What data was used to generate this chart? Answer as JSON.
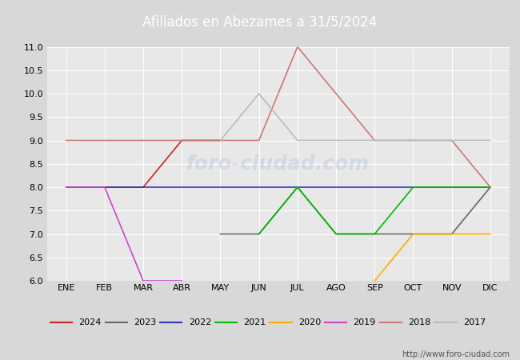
{
  "title": "Afiliados en Abezames a 31/5/2024",
  "months": [
    "ENE",
    "FEB",
    "MAR",
    "ABR",
    "MAY",
    "JUN",
    "JUL",
    "AGO",
    "SEP",
    "OCT",
    "NOV",
    "DIC"
  ],
  "ylim": [
    6.0,
    11.0
  ],
  "yticks": [
    6.0,
    6.5,
    7.0,
    7.5,
    8.0,
    8.5,
    9.0,
    9.5,
    10.0,
    10.5,
    11.0
  ],
  "series_plot": {
    "2024": {
      "color": "#cc2222",
      "x": [
        0,
        1,
        2,
        3,
        4
      ],
      "y": [
        8,
        8,
        8,
        9,
        9
      ]
    },
    "2023": {
      "color": "#666666",
      "x": [
        4,
        5,
        6,
        7,
        8,
        9,
        10,
        11
      ],
      "y": [
        7,
        7,
        8,
        7,
        7,
        7,
        7,
        8
      ]
    },
    "2022": {
      "color": "#3333bb",
      "x": [
        0,
        1,
        2,
        3,
        4,
        5,
        6,
        7,
        8,
        9,
        10,
        11
      ],
      "y": [
        8,
        8,
        8,
        8,
        8,
        8,
        8,
        8,
        8,
        8,
        8,
        8
      ]
    },
    "2021": {
      "color": "#00bb00",
      "x": [
        5,
        6,
        7,
        8,
        9,
        10,
        11
      ],
      "y": [
        7,
        8,
        7,
        7,
        8,
        8,
        8
      ]
    },
    "2020": {
      "color": "#ffaa00",
      "x": [
        8,
        9,
        10,
        11
      ],
      "y": [
        6,
        7,
        7,
        7
      ]
    },
    "2019": {
      "color": "#cc44cc",
      "x": [
        0,
        1,
        2,
        3
      ],
      "y": [
        8,
        8,
        6,
        6
      ]
    },
    "2018": {
      "color": "#cc7777",
      "x": [
        0,
        1,
        2,
        3,
        4,
        5,
        6,
        7,
        8,
        9,
        10,
        11
      ],
      "y": [
        9,
        9,
        9,
        9,
        9,
        9,
        11,
        10,
        9,
        9,
        9,
        8
      ]
    },
    "2017": {
      "color": "#bbbbbb",
      "x": [
        4,
        5,
        6,
        7,
        8,
        9,
        10,
        11
      ],
      "y": [
        9,
        10,
        9,
        9,
        9,
        9,
        9,
        9
      ]
    }
  },
  "legend_order": [
    "2024",
    "2023",
    "2022",
    "2021",
    "2020",
    "2019",
    "2018",
    "2017"
  ],
  "url": "http://www.foro-ciudad.com",
  "title_bg": "#4472c4",
  "title_fg": "#ffffff",
  "fig_bg": "#d8d8d8",
  "plot_bg": "#e8e8e8",
  "grid_color": "#ffffff",
  "watermark": "foro-ciudad.com"
}
